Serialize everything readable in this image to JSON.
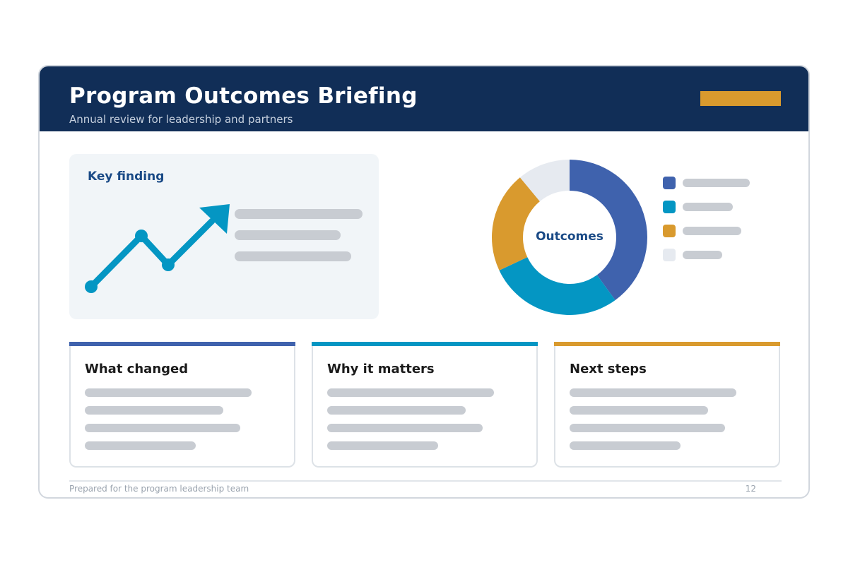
{
  "header": {
    "title": "Program Outcomes Briefing",
    "subtitle": "Annual review for leadership and partners"
  },
  "colors": {
    "header_bg": "#112e57",
    "accent_gold": "#d99a2e",
    "blue": "#3f62ad",
    "teal": "#0496c3",
    "gold": "#d99a2e",
    "light": "#e6eaf0",
    "placeholder": "#c8ccd2"
  },
  "finding": {
    "title": "Key finding",
    "icon": "trend-up-arrow-icon"
  },
  "donut": {
    "center_label": "Outcomes",
    "segments": [
      {
        "color": "#3f62ad",
        "fraction": 0.4
      },
      {
        "color": "#0496c3",
        "fraction": 0.28
      },
      {
        "color": "#d99a2e",
        "fraction": 0.21
      },
      {
        "color": "#e6eaf0",
        "fraction": 0.11
      }
    ]
  },
  "cards": [
    {
      "title": "What changed",
      "accent": "#3f62ad"
    },
    {
      "title": "Why it matters",
      "accent": "#0496c3"
    },
    {
      "title": "Next steps",
      "accent": "#d99a2e"
    }
  ],
  "footer": {
    "text": "Prepared for the program leadership team",
    "page_number": "12"
  }
}
